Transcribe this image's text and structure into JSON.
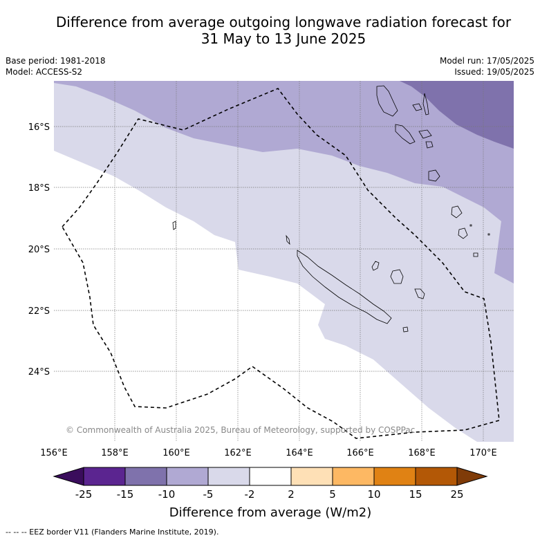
{
  "header": {
    "title_line1": "Difference from average outgoing longwave radiation forecast for",
    "title_line2": "31 May to 13 June 2025",
    "base_period": "Base period: 1981-2018",
    "model": "Model: ACCESS-S2",
    "model_run": "Model run: 17/05/2025",
    "issued": "Issued: 19/05/2025"
  },
  "map": {
    "lon_labels": [
      "156°E",
      "158°E",
      "160°E",
      "162°E",
      "164°E",
      "166°E",
      "168°E",
      "170°E"
    ],
    "lat_labels": [
      "16°S",
      "18°S",
      "20°S",
      "22°S",
      "24°S"
    ],
    "copyright": "© Commonwealth of Australia 2025, Bureau of Meteorology, supported by COSPPac",
    "colors": {
      "band_-15_-10": "#7f72ac",
      "band_-10_-5": "#b0a9d3",
      "band_-5_-2": "#d9d9ea",
      "band_-2_2": "#ffffff",
      "eez_border": "#000000"
    }
  },
  "colorbar": {
    "title": "Difference from average (W/m2)",
    "tick_labels": [
      "-25",
      "-15",
      "-10",
      "-5",
      "-2",
      "2",
      "5",
      "10",
      "15",
      "25"
    ],
    "colors": [
      "#3a0d5c",
      "#5b2590",
      "#7f72ac",
      "#b0a9d3",
      "#d9d9ea",
      "#ffffff",
      "#fee0b6",
      "#fdb863",
      "#e08214",
      "#b35806",
      "#7f3b08"
    ]
  },
  "footer": {
    "legend": "--  --  -- EEZ border V11 (Flanders Marine Institute, 2019)."
  }
}
